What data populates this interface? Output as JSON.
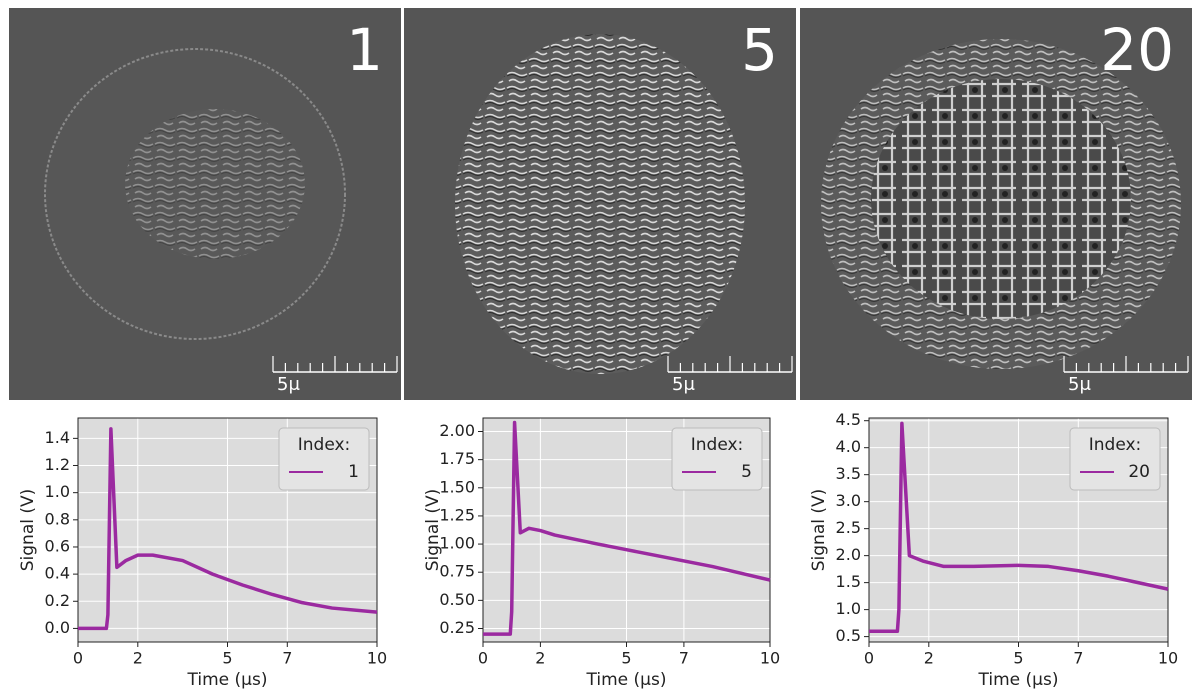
{
  "images": [
    {
      "label": "1",
      "scale_label": "5μ"
    },
    {
      "label": "5",
      "scale_label": "5μ"
    },
    {
      "label": "20",
      "scale_label": "5μ"
    }
  ],
  "chart_data": [
    {
      "type": "line",
      "xlabel": "Time (μs)",
      "ylabel": "Signal (V)",
      "legend_title": "Index:",
      "legend": "upper right",
      "grid": true,
      "x": [
        0,
        0.5,
        0.95,
        1.0,
        1.1,
        1.3,
        1.6,
        2,
        2.5,
        3.5,
        4.5,
        5.5,
        6.5,
        7.5,
        8.5,
        10
      ],
      "series": [
        {
          "name": "1",
          "color": "#9b2aa0",
          "values": [
            0.0,
            0.0,
            0.0,
            0.1,
            1.47,
            0.45,
            0.5,
            0.54,
            0.54,
            0.5,
            0.4,
            0.32,
            0.25,
            0.19,
            0.15,
            0.12
          ]
        }
      ],
      "xlim": [
        0,
        10
      ],
      "xticks": [
        0,
        2,
        5,
        7,
        10
      ],
      "ylim": [
        -0.1,
        1.55
      ],
      "yticks": [
        {
          "value": 0,
          "label": "0.0"
        },
        0.2,
        0.4,
        0.6,
        0.8,
        {
          "value": 1,
          "label": "1.0"
        },
        1.2,
        1.4
      ]
    },
    {
      "type": "line",
      "xlabel": "Time (μs)",
      "ylabel": "Signal (V)",
      "legend_title": "Index:",
      "legend": "upper right",
      "grid": true,
      "x": [
        0,
        0.5,
        0.95,
        1.0,
        1.1,
        1.3,
        1.6,
        2,
        2.5,
        4,
        5,
        6,
        7,
        8,
        9,
        10
      ],
      "series": [
        {
          "name": "5",
          "color": "#9b2aa0",
          "values": [
            0.2,
            0.2,
            0.2,
            0.4,
            2.08,
            1.1,
            1.14,
            1.12,
            1.08,
            1.0,
            0.95,
            0.9,
            0.85,
            0.8,
            0.74,
            0.68
          ]
        }
      ],
      "xlim": [
        0,
        10
      ],
      "xticks": [
        0,
        2,
        5,
        7,
        10
      ],
      "ylim": [
        0.13,
        2.12
      ],
      "yticks": [
        0.25,
        {
          "value": 0.5,
          "label": "0.50"
        },
        0.75,
        {
          "value": 1,
          "label": "1.00"
        },
        1.25,
        {
          "value": 1.5,
          "label": "1.50"
        },
        1.75,
        {
          "value": 2,
          "label": "2.00"
        }
      ]
    },
    {
      "type": "line",
      "xlabel": "Time (μs)",
      "ylabel": "Signal (V)",
      "legend_title": "Index:",
      "legend": "upper right",
      "grid": true,
      "x": [
        0,
        0.5,
        0.95,
        1.0,
        1.1,
        1.35,
        1.8,
        2.5,
        3.5,
        5,
        6,
        7,
        8,
        9,
        10
      ],
      "series": [
        {
          "name": "20",
          "color": "#9b2aa0",
          "values": [
            0.6,
            0.6,
            0.6,
            1.0,
            4.45,
            2.0,
            1.9,
            1.8,
            1.8,
            1.82,
            1.8,
            1.72,
            1.62,
            1.5,
            1.38
          ]
        }
      ],
      "xlim": [
        0,
        10
      ],
      "xticks": [
        0,
        2,
        5,
        7,
        10
      ],
      "ylim": [
        0.4,
        4.55
      ],
      "yticks": [
        0.5,
        {
          "value": 1,
          "label": "1.0"
        },
        1.5,
        {
          "value": 2,
          "label": "2.0"
        },
        2.5,
        {
          "value": 3,
          "label": "3.0"
        },
        3.5,
        {
          "value": 4,
          "label": "4.0"
        },
        4.5
      ]
    }
  ]
}
